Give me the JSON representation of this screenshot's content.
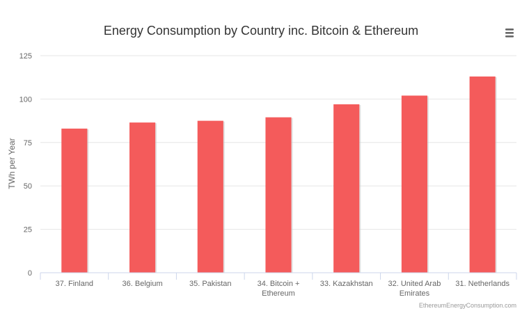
{
  "chart_data": {
    "type": "bar",
    "title": "Energy Consumption by Country inc. Bitcoin & Ethereum",
    "xlabel": "",
    "ylabel": "TWh per Year",
    "categories": [
      "37. Finland",
      "36. Belgium",
      "35. Pakistan",
      "34. Bitcoin + Ethereum",
      "33. Kazakhstan",
      "32. United Arab Emirates",
      "31. Netherlands"
    ],
    "category_lines": [
      [
        "37. Finland"
      ],
      [
        "36. Belgium"
      ],
      [
        "35. Pakistan"
      ],
      [
        "34. Bitcoin +",
        "Ethereum"
      ],
      [
        "33. Kazakhstan"
      ],
      [
        "32. United Arab",
        "Emirates"
      ],
      [
        "31. Netherlands"
      ]
    ],
    "series": [
      {
        "values": [
          83,
          86.5,
          87.5,
          89.5,
          97,
          102,
          113
        ],
        "color": "#f45b5b"
      }
    ],
    "yticks": [
      "0",
      "25",
      "50",
      "75",
      "100",
      "125"
    ],
    "ylim": [
      0,
      125
    ],
    "grid": true,
    "legend": "none",
    "credits": "EthereumEnergyConsumption.com",
    "menu_icon": "hamburger-menu-icon"
  }
}
